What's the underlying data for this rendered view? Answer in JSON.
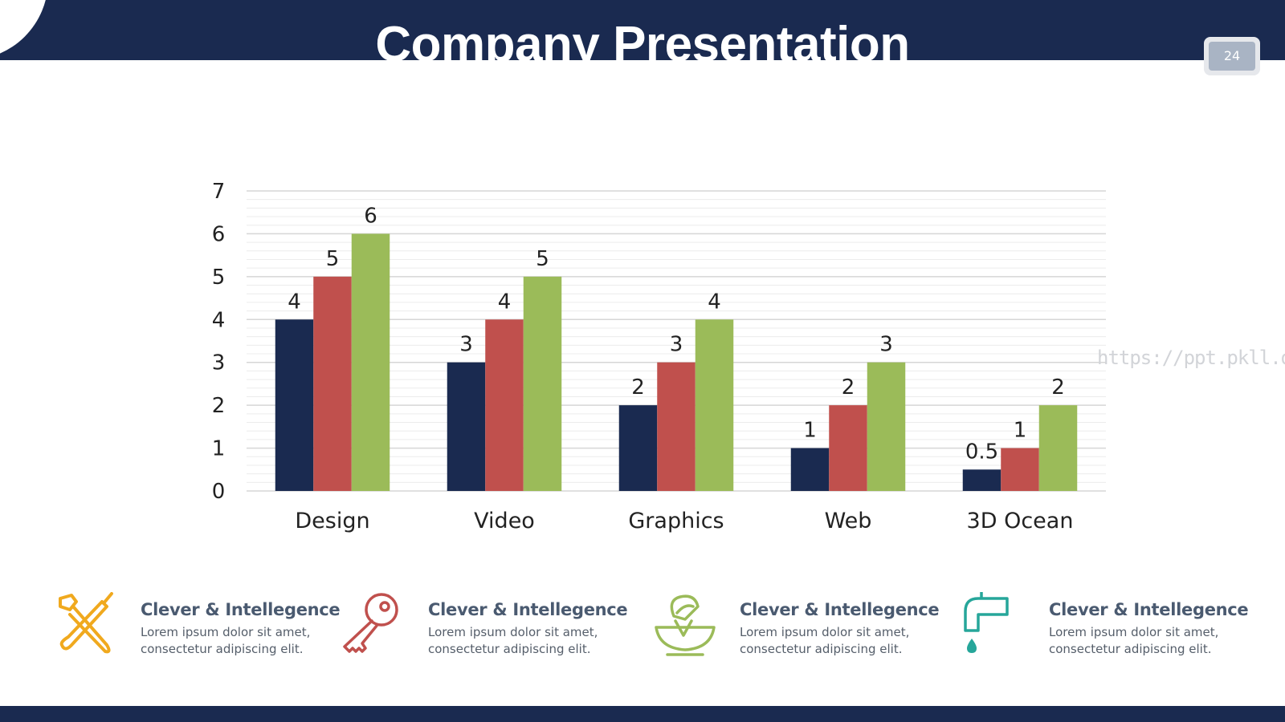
{
  "header": {
    "title": "Company Presentation",
    "page_number": "24"
  },
  "watermark": "https://ppt.pkll.de",
  "colors": {
    "navy": "#1a2a50",
    "red": "#c0504d",
    "green": "#9bbb59",
    "orange": "#f0a91e",
    "teal": "#26a69a"
  },
  "chart_data": {
    "type": "bar",
    "categories": [
      "Design",
      "Video",
      "Graphics",
      "Web",
      "3D Ocean"
    ],
    "series": [
      {
        "values": [
          4,
          3,
          2,
          1,
          0.5
        ],
        "color": "#1a2a50"
      },
      {
        "values": [
          5,
          4,
          3,
          2,
          1
        ],
        "color": "#c0504d"
      },
      {
        "values": [
          6,
          5,
          4,
          3,
          2
        ],
        "color": "#9bbb59"
      }
    ],
    "ylim": [
      0,
      7
    ],
    "yticks": [
      0,
      1,
      2,
      3,
      4,
      5,
      6,
      7
    ],
    "grid": true,
    "data_labels": true,
    "legend": "none"
  },
  "features": [
    {
      "icon": "tools-icon",
      "title": "Clever & Intellegence",
      "line1": "Lorem ipsum dolor sit amet,",
      "line2": "consectetur adipiscing elit."
    },
    {
      "icon": "key-icon",
      "title": "Clever & Intellegence",
      "line1": "Lorem ipsum dolor sit amet,",
      "line2": "consectetur adipiscing elit."
    },
    {
      "icon": "juicer-icon",
      "title": "Clever & Intellegence",
      "line1": "Lorem ipsum dolor sit amet,",
      "line2": "consectetur adipiscing elit."
    },
    {
      "icon": "faucet-icon",
      "title": "Clever & Intellegence",
      "line1": "Lorem ipsum dolor sit amet,",
      "line2": "consectetur adipiscing elit."
    }
  ]
}
